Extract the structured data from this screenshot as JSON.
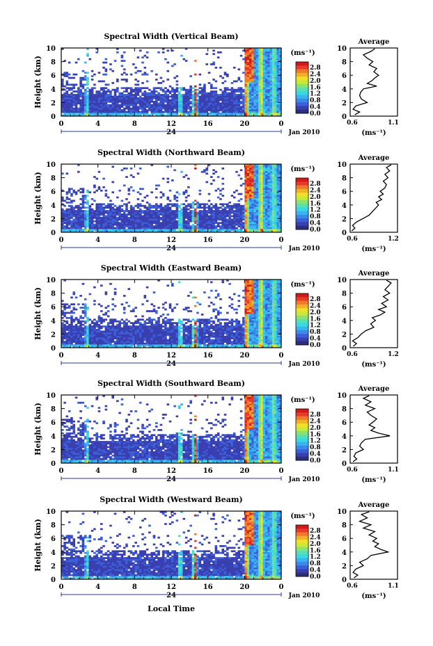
{
  "colors": {
    "colorbar": [
      "#2b2f7a",
      "#3a3fb0",
      "#3a5fd8",
      "#3a8ae8",
      "#3ab4f0",
      "#3ad8e0",
      "#5ae0b0",
      "#8ee070",
      "#c8e83a",
      "#f0e02a",
      "#f0b02a",
      "#f07a2a",
      "#e83a2a",
      "#d01a1a"
    ],
    "background": "#ffffff"
  },
  "footer": {
    "xaxis_label": "Local Time"
  },
  "panels": [
    {
      "title": "Spectral Width (Vertical Beam)",
      "ylabel": "Height (km)",
      "yticks": [
        "10",
        "8",
        "6",
        "4",
        "2",
        "0"
      ],
      "xticks": [
        "0",
        "4",
        "8",
        "12",
        "16",
        "20",
        "0"
      ],
      "day_label": "24",
      "date_label": "Jan 2010",
      "unit_label": "(ms⁻¹)",
      "colorbar_ticks": [
        "2.8",
        "2.4",
        "2.0",
        "1.6",
        "1.2",
        "0.8",
        "0.4",
        "0.0"
      ],
      "avg_title": "Average",
      "avg_xticks": [
        "0.6",
        "1.1"
      ],
      "avg_yticks": [
        "10",
        "8",
        "6",
        "4",
        "2",
        "0"
      ],
      "avg_xlabel": "(ms⁻¹)"
    },
    {
      "title": "Spectral Width (Northward Beam)",
      "ylabel": "Height (km)",
      "yticks": [
        "10",
        "8",
        "6",
        "4",
        "2",
        "0"
      ],
      "xticks": [
        "0",
        "4",
        "8",
        "12",
        "16",
        "20",
        "0"
      ],
      "day_label": "24",
      "date_label": "Jan 2010",
      "unit_label": "(ms⁻¹)",
      "colorbar_ticks": [
        "2.8",
        "2.4",
        "2.0",
        "1.6",
        "1.2",
        "0.8",
        "0.4",
        "0.0"
      ],
      "avg_title": "Average",
      "avg_xticks": [
        "0.6",
        "1.2"
      ],
      "avg_yticks": [
        "10",
        "8",
        "6",
        "4",
        "2",
        "0"
      ],
      "avg_xlabel": "(ms⁻¹)"
    },
    {
      "title": "Spectral Width (Eastward Beam)",
      "ylabel": "Height (km)",
      "yticks": [
        "10",
        "8",
        "6",
        "4",
        "2",
        "0"
      ],
      "xticks": [
        "0",
        "4",
        "8",
        "12",
        "16",
        "20",
        "0"
      ],
      "day_label": "24",
      "date_label": "Jan 2010",
      "unit_label": "(ms⁻¹)",
      "colorbar_ticks": [
        "2.8",
        "2.4",
        "2.0",
        "1.6",
        "1.2",
        "0.8",
        "0.4",
        "0.0"
      ],
      "avg_title": "Average",
      "avg_xticks": [
        "0.6",
        "1.2"
      ],
      "avg_yticks": [
        "10",
        "8",
        "6",
        "4",
        "2",
        "0"
      ],
      "avg_xlabel": "(ms⁻¹)"
    },
    {
      "title": "Spectral Width (Southward Beam)",
      "ylabel": "Height (km)",
      "yticks": [
        "10",
        "8",
        "6",
        "4",
        "2",
        "0"
      ],
      "xticks": [
        "0",
        "4",
        "8",
        "12",
        "16",
        "20",
        "0"
      ],
      "day_label": "24",
      "date_label": "Jan 2010",
      "unit_label": "(ms⁻¹)",
      "colorbar_ticks": [
        "2.8",
        "2.4",
        "2.0",
        "1.6",
        "1.2",
        "0.8",
        "0.4",
        "0.0"
      ],
      "avg_title": "Average",
      "avg_xticks": [
        "0.6",
        "1.1"
      ],
      "avg_yticks": [
        "10",
        "8",
        "6",
        "4",
        "2",
        "0"
      ],
      "avg_xlabel": "(ms⁻¹)"
    },
    {
      "title": "Spectral Width (Westward Beam)",
      "ylabel": "Height (km)",
      "yticks": [
        "10",
        "8",
        "6",
        "4",
        "2",
        "0"
      ],
      "xticks": [
        "0",
        "4",
        "8",
        "12",
        "16",
        "20",
        "0"
      ],
      "day_label": "24",
      "date_label": "Jan 2010",
      "unit_label": "(ms⁻¹)",
      "colorbar_ticks": [
        "2.8",
        "2.4",
        "2.0",
        "1.6",
        "1.2",
        "0.8",
        "0.4",
        "0.0"
      ],
      "avg_title": "Average",
      "avg_xticks": [
        "0.6",
        "1.1"
      ],
      "avg_yticks": [
        "10",
        "8",
        "6",
        "4",
        "2",
        "0"
      ],
      "avg_xlabel": "(ms⁻¹)"
    }
  ],
  "chart_data": [
    {
      "type": "heatmap",
      "title": "Spectral Width (Vertical Beam)",
      "xlabel": "",
      "ylabel": "Height (km)",
      "xlim": [
        0,
        24
      ],
      "ylim": [
        0,
        10
      ],
      "zlim": [
        0.0,
        3.0
      ],
      "colorbar_label": "(ms⁻¹)",
      "average_profile": {
        "type": "line",
        "title": "Average",
        "xlim": [
          0.6,
          1.1
        ],
        "ylim": [
          0,
          10
        ],
        "xlabel": "(ms⁻¹)",
        "height": [
          0.2,
          0.6,
          1.0,
          1.5,
          2.0,
          2.5,
          3.0,
          3.5,
          4.0,
          4.4,
          4.8,
          5.2,
          5.6,
          6.0,
          6.5,
          7.0,
          7.5,
          8.0,
          8.5,
          9.0,
          9.5,
          9.9
        ],
        "width": [
          0.65,
          0.7,
          0.63,
          0.66,
          0.78,
          0.72,
          0.7,
          0.71,
          0.74,
          0.88,
          0.78,
          0.83,
          0.86,
          0.9,
          0.85,
          0.88,
          0.8,
          0.84,
          0.78,
          0.74,
          0.82,
          0.86
        ]
      }
    },
    {
      "type": "heatmap",
      "title": "Spectral Width (Northward Beam)",
      "xlabel": "",
      "ylabel": "Height (km)",
      "xlim": [
        0,
        24
      ],
      "ylim": [
        0,
        10
      ],
      "zlim": [
        0.0,
        3.0
      ],
      "colorbar_label": "(ms⁻¹)",
      "average_profile": {
        "type": "line",
        "title": "Average",
        "xlim": [
          0.6,
          1.2
        ],
        "ylim": [
          0,
          10
        ],
        "xlabel": "(ms⁻¹)",
        "height": [
          0.2,
          0.6,
          1.0,
          1.5,
          2.0,
          2.5,
          3.0,
          3.5,
          4.0,
          4.4,
          4.8,
          5.2,
          5.6,
          6.0,
          6.5,
          7.0,
          7.5,
          8.0,
          8.5,
          9.0,
          9.5,
          9.9
        ],
        "width": [
          0.62,
          0.66,
          0.63,
          0.68,
          0.76,
          0.84,
          0.88,
          0.92,
          0.96,
          0.93,
          1.0,
          0.96,
          1.02,
          0.98,
          1.04,
          1.06,
          1.02,
          1.08,
          1.04,
          1.1,
          1.06,
          1.12
        ]
      }
    },
    {
      "type": "heatmap",
      "title": "Spectral Width (Eastward Beam)",
      "xlabel": "",
      "ylabel": "Height (km)",
      "xlim": [
        0,
        24
      ],
      "ylim": [
        0,
        10
      ],
      "zlim": [
        0.0,
        3.0
      ],
      "colorbar_label": "(ms⁻¹)",
      "average_profile": {
        "type": "line",
        "title": "Average",
        "xlim": [
          0.6,
          1.2
        ],
        "ylim": [
          0,
          10
        ],
        "xlabel": "(ms⁻¹)",
        "height": [
          0.2,
          0.6,
          1.0,
          1.5,
          2.0,
          2.5,
          3.0,
          3.5,
          4.0,
          4.4,
          4.8,
          5.2,
          5.6,
          6.0,
          6.5,
          7.0,
          7.5,
          8.0,
          8.5,
          9.0,
          9.5,
          9.9
        ],
        "width": [
          0.64,
          0.68,
          0.63,
          0.7,
          0.74,
          0.8,
          0.9,
          0.86,
          0.92,
          0.88,
          0.98,
          1.04,
          0.96,
          1.06,
          1.0,
          1.08,
          1.02,
          1.1,
          1.04,
          1.08,
          1.12,
          1.06
        ]
      }
    },
    {
      "type": "heatmap",
      "title": "Spectral Width (Southward Beam)",
      "xlabel": "",
      "ylabel": "Height (km)",
      "xlim": [
        0,
        24
      ],
      "ylim": [
        0,
        10
      ],
      "zlim": [
        0.0,
        3.0
      ],
      "colorbar_label": "(ms⁻¹)",
      "average_profile": {
        "type": "line",
        "title": "Average",
        "xlim": [
          0.6,
          1.1
        ],
        "ylim": [
          0,
          10
        ],
        "xlabel": "(ms⁻¹)",
        "height": [
          0.2,
          0.6,
          1.0,
          1.5,
          2.0,
          2.5,
          3.0,
          3.5,
          4.0,
          4.4,
          4.8,
          5.2,
          5.6,
          6.0,
          6.5,
          7.0,
          7.5,
          8.0,
          8.5,
          9.0,
          9.5,
          9.9
        ],
        "width": [
          0.63,
          0.67,
          0.64,
          0.66,
          0.74,
          0.7,
          0.72,
          0.76,
          1.02,
          0.9,
          0.82,
          0.86,
          0.8,
          0.84,
          0.88,
          0.82,
          0.78,
          0.86,
          0.76,
          0.82,
          0.74,
          0.8
        ]
      }
    },
    {
      "type": "heatmap",
      "title": "Spectral Width (Westward Beam)",
      "xlabel": "Local Time",
      "ylabel": "Height (km)",
      "xlim": [
        0,
        24
      ],
      "ylim": [
        0,
        10
      ],
      "zlim": [
        0.0,
        3.0
      ],
      "colorbar_label": "(ms⁻¹)",
      "average_profile": {
        "type": "line",
        "title": "Average",
        "xlim": [
          0.6,
          1.1
        ],
        "ylim": [
          0,
          10
        ],
        "xlabel": "(ms⁻¹)",
        "height": [
          0.2,
          0.6,
          1.0,
          1.5,
          2.0,
          2.5,
          3.0,
          3.5,
          4.0,
          4.4,
          4.8,
          5.2,
          5.6,
          6.0,
          6.5,
          7.0,
          7.5,
          8.0,
          8.5,
          9.0,
          9.5,
          9.9
        ],
        "width": [
          0.64,
          0.68,
          0.63,
          0.66,
          0.74,
          0.7,
          0.78,
          0.82,
          1.0,
          0.92,
          0.86,
          0.9,
          0.84,
          0.88,
          0.8,
          0.86,
          0.74,
          0.82,
          0.7,
          0.78,
          0.72,
          0.8
        ]
      }
    }
  ]
}
